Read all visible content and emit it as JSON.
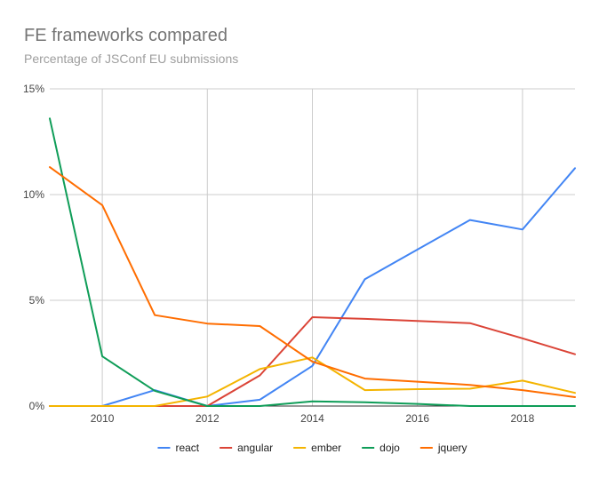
{
  "chart_data": {
    "type": "line",
    "title": "FE frameworks compared",
    "subtitle": "Percentage of JSConf EU submissions",
    "xlabel": "",
    "ylabel": "",
    "x": [
      2009,
      2010,
      2011,
      2012,
      2013,
      2014,
      2015,
      2016,
      2017,
      2018,
      2019
    ],
    "xlim": [
      2009,
      2019
    ],
    "ylim": [
      0,
      15
    ],
    "x_ticks": [
      "2010",
      "2012",
      "2014",
      "2016",
      "2018"
    ],
    "y_ticks": [
      "0%",
      "5%",
      "10%",
      "15%"
    ],
    "grid": "on",
    "legend_position": "bottom",
    "series": [
      {
        "name": "react",
        "color": "#4285f4",
        "values": [
          0,
          0,
          0.75,
          0,
          0.3,
          1.9,
          6.0,
          7.4,
          8.8,
          8.35,
          11.25
        ]
      },
      {
        "name": "angular",
        "color": "#db4437",
        "values": [
          0,
          0,
          0,
          0,
          1.45,
          4.2,
          4.12,
          4.02,
          3.92,
          3.2,
          2.45
        ]
      },
      {
        "name": "ember",
        "color": "#f4b400",
        "values": [
          0,
          0,
          0,
          0.45,
          1.75,
          2.3,
          0.75,
          0.8,
          0.82,
          1.2,
          0.62
        ]
      },
      {
        "name": "dojo",
        "color": "#0f9d58",
        "values": [
          13.6,
          2.35,
          0.72,
          0,
          0,
          0.22,
          0.18,
          0.1,
          0,
          0,
          0
        ]
      },
      {
        "name": "jquery",
        "color": "#ff6d00",
        "values": [
          11.3,
          9.5,
          4.3,
          3.9,
          3.78,
          2.1,
          1.3,
          1.15,
          1.0,
          0.75,
          0.42
        ]
      }
    ]
  }
}
